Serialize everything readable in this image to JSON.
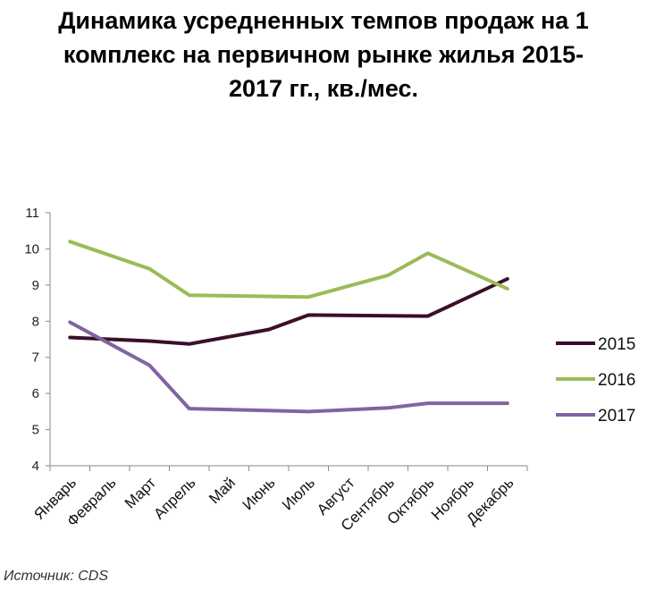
{
  "chart_data": {
    "type": "line",
    "title": "Динамика усредненных темпов продаж на 1\nкомплекс на первичном рынке жилья 2015-\n2017 гг., кв./мес.",
    "xlabel": "",
    "ylabel": "",
    "ylim": [
      4,
      11
    ],
    "yticks": [
      4,
      5,
      6,
      7,
      8,
      9,
      10,
      11
    ],
    "categories": [
      "Январь",
      "Февраль",
      "Март",
      "Апрель",
      "Май",
      "Июнь",
      "Июль",
      "Август",
      "Сентябрь",
      "Октябрь",
      "Ноябрь",
      "Декабрь"
    ],
    "grid": false,
    "legend_position": "right",
    "series": [
      {
        "name": "2015",
        "color": "#3b0f2a",
        "values": [
          7.55,
          null,
          7.45,
          7.37,
          null,
          7.77,
          8.17,
          null,
          null,
          8.14,
          null,
          9.17
        ]
      },
      {
        "name": "2016",
        "color": "#9bbb59",
        "values": [
          10.2,
          null,
          9.45,
          8.72,
          null,
          null,
          8.67,
          null,
          9.27,
          9.88,
          null,
          8.9
        ]
      },
      {
        "name": "2017",
        "color": "#8064a2",
        "values": [
          7.97,
          null,
          6.78,
          5.58,
          null,
          null,
          5.5,
          null,
          5.6,
          5.73,
          null,
          5.73
        ]
      }
    ]
  },
  "source": "Источник: CDS"
}
